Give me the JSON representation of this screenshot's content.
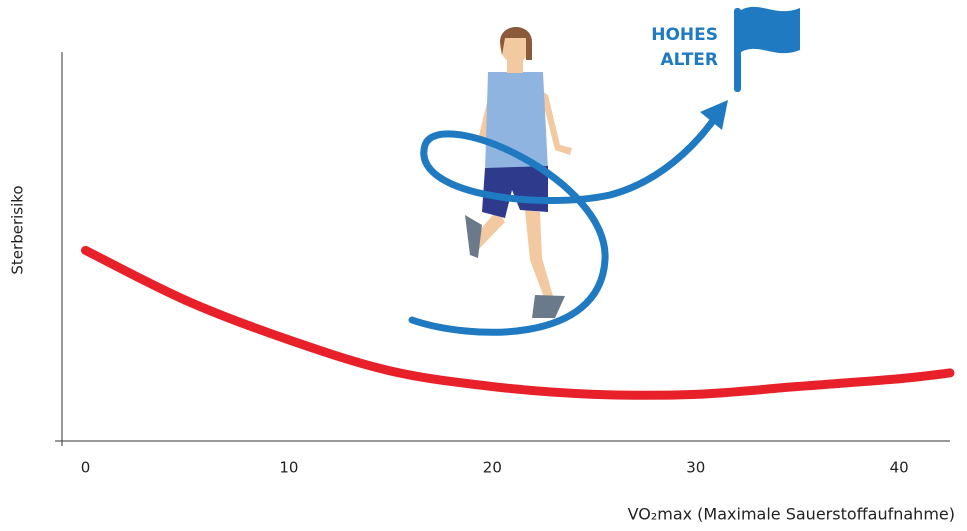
{
  "chart_data": {
    "type": "line",
    "annotation": [
      "HOHES",
      "ALTER"
    ],
    "xlabel": "VO₂max (Maximale Sauerstoffaufnahme)",
    "ylabel": "Sterberisiko",
    "x": [
      0,
      5,
      10,
      15,
      20,
      25,
      30,
      35,
      40,
      42.5
    ],
    "series": [
      {
        "color": "#e8202a",
        "values": [
          49,
          36,
          26,
          18,
          14,
          12,
          12,
          14,
          16,
          17.5
        ]
      }
    ],
    "xlim": [
      -1.5,
      42.5
    ],
    "xticks": [
      0,
      10,
      20,
      30,
      40
    ],
    "ylim": [
      0,
      100
    ]
  }
}
